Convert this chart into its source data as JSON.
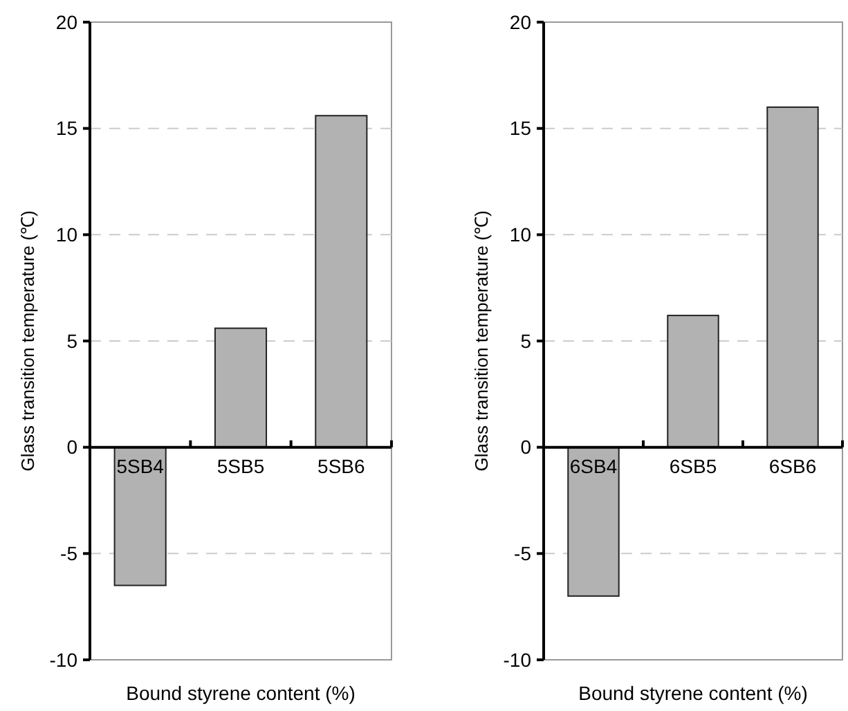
{
  "chart_data": [
    {
      "type": "bar",
      "categories": [
        "5SB4",
        "5SB5",
        "5SB6"
      ],
      "values": [
        -6.5,
        5.6,
        15.6
      ],
      "color": "#b2b2b2",
      "xlabel": "Bound styrene content (%)",
      "ylabel": "Glass transition temperature (℃)",
      "ylim": [
        -10,
        20
      ],
      "yticks": [
        -10,
        -5,
        0,
        5,
        10,
        15,
        20
      ],
      "grid": "y"
    },
    {
      "type": "bar",
      "categories": [
        "6SB4",
        "6SB5",
        "6SB6"
      ],
      "values": [
        -7.0,
        6.2,
        16.0
      ],
      "color": "#b2b2b2",
      "xlabel": "Bound styrene content (%)",
      "ylabel": "Glass transition temperature (℃)",
      "ylim": [
        -10,
        20
      ],
      "yticks": [
        -10,
        -5,
        0,
        5,
        10,
        15,
        20
      ],
      "grid": "y"
    }
  ]
}
